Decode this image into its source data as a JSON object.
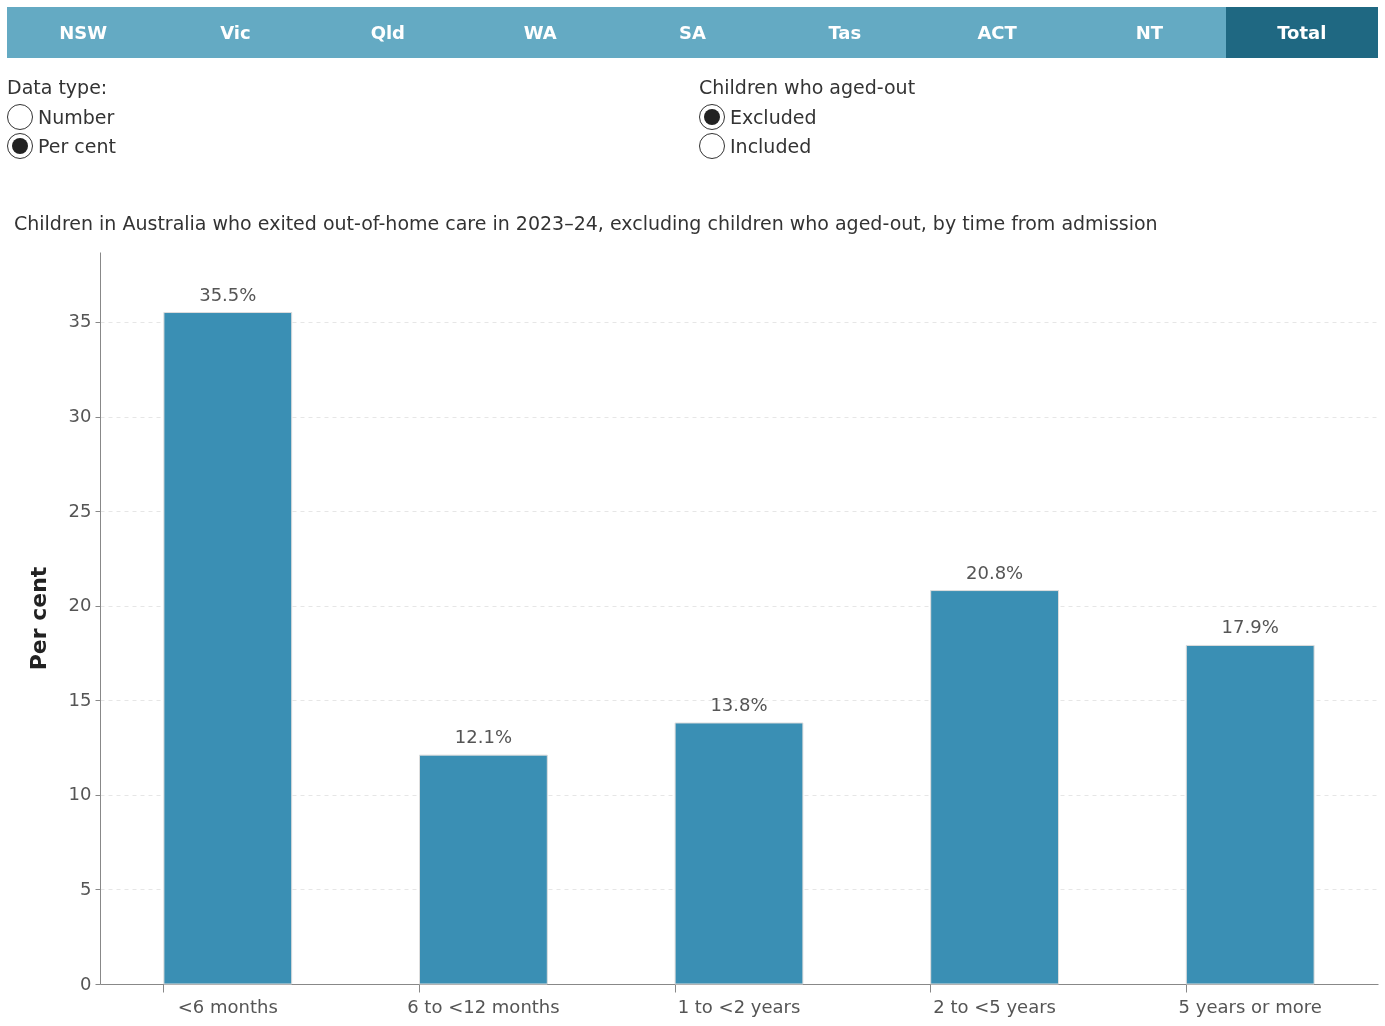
{
  "chart_data": {
    "type": "bar",
    "title": "Children in Australia who exited out-of-home care in 2023–24, excluding children who aged-out, by time from admission",
    "ylabel": "Per cent",
    "categories": [
      "<6 months",
      "6 to <12 months",
      "1 to <2 years",
      "2 to <5 years",
      "5 years or more"
    ],
    "values": [
      35.5,
      12.1,
      13.8,
      20.8,
      17.9
    ],
    "value_labels": [
      "35.5%",
      "12.1%",
      "13.8%",
      "20.8%",
      "17.9%"
    ],
    "color": "#3a8fb4",
    "ylim": [
      0,
      38.7
    ],
    "yticks": [
      0,
      5,
      10,
      15,
      20,
      25,
      30,
      35
    ],
    "grid": "y",
    "annotations": [
      "NSW",
      "Vic",
      "Qld",
      "WA",
      "SA",
      "Tas",
      "ACT",
      "NT",
      "Total",
      "Data type:",
      "Number",
      "Per cent",
      "Children who aged-out",
      "Excluded",
      "Included"
    ]
  }
}
